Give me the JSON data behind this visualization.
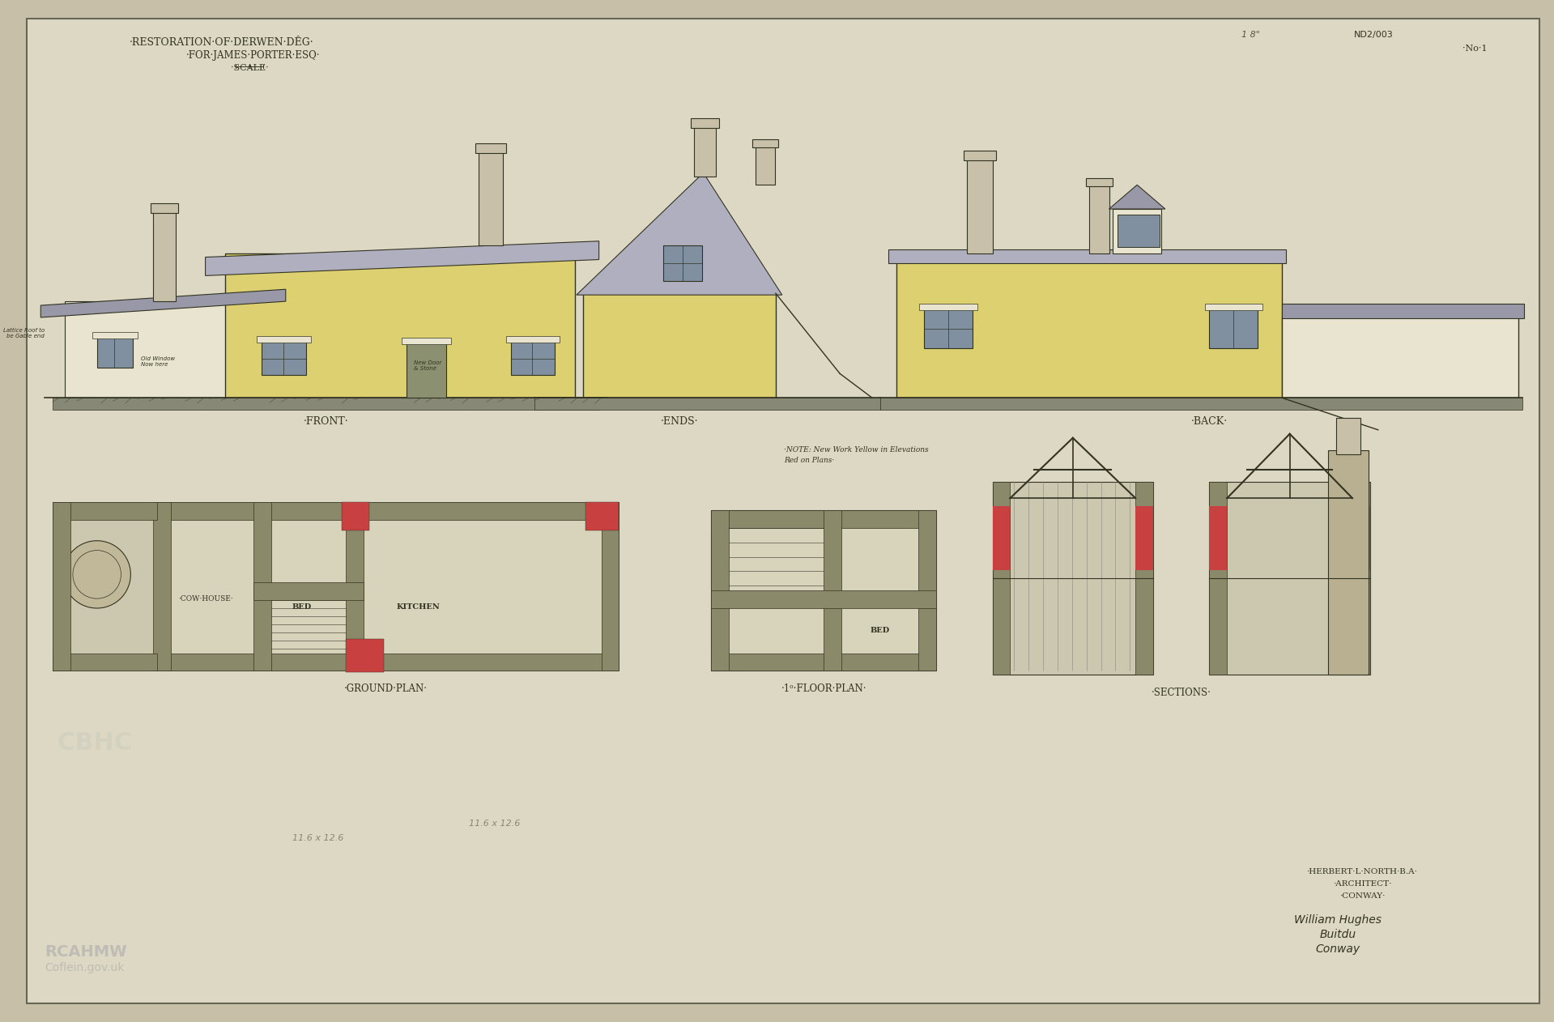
{
  "bg_color": "#c8bfa8",
  "paper_color": "#ddd8c4",
  "border_color": "#666655",
  "title_line1": "·RESTORATION·OF·DERWEN·DÊG·",
  "title_line2": "·FOR·JAMES·PORTER·ESQ·",
  "title_line3": "·SCALE·",
  "ref_top": "ND2/003",
  "ref_no": "·No·1",
  "ref_pencil": "1 8\"",
  "label_front": "·FRONT·",
  "label_ends": "·ENDS·",
  "label_back": "·BACK·",
  "label_ground": "·GROUND·PLAN·",
  "label_1st": "·1ᵒ·FLOOR·PLAN·",
  "label_sections": "·SECTIONS·",
  "architect_line1": "·HERBERT·L·NORTH·B.A·",
  "architect_line2": "·ARCHITECT·",
  "architect_line3": "·CONWAY·",
  "signature_line1": "William Hughes",
  "signature_line2": "Buitdu",
  "signature_line3": "Conway",
  "note_text1": "·NOTE: New Work Yellow in Elevations",
  "note_text2": "Red on Plans·",
  "roof_color": "#b0afc0",
  "roof_color2": "#9898a8",
  "wall_color_yellow": "#ddd070",
  "wall_color_light": "#e8e4d0",
  "wall_color_gray": "#c0bca8",
  "section_red": "#c84040",
  "section_green": "#8a8a6a",
  "section_brown": "#907050",
  "ground_color": "#907860",
  "timber_color": "#b08040",
  "line_color": "#333322",
  "window_color": "#8090a0"
}
